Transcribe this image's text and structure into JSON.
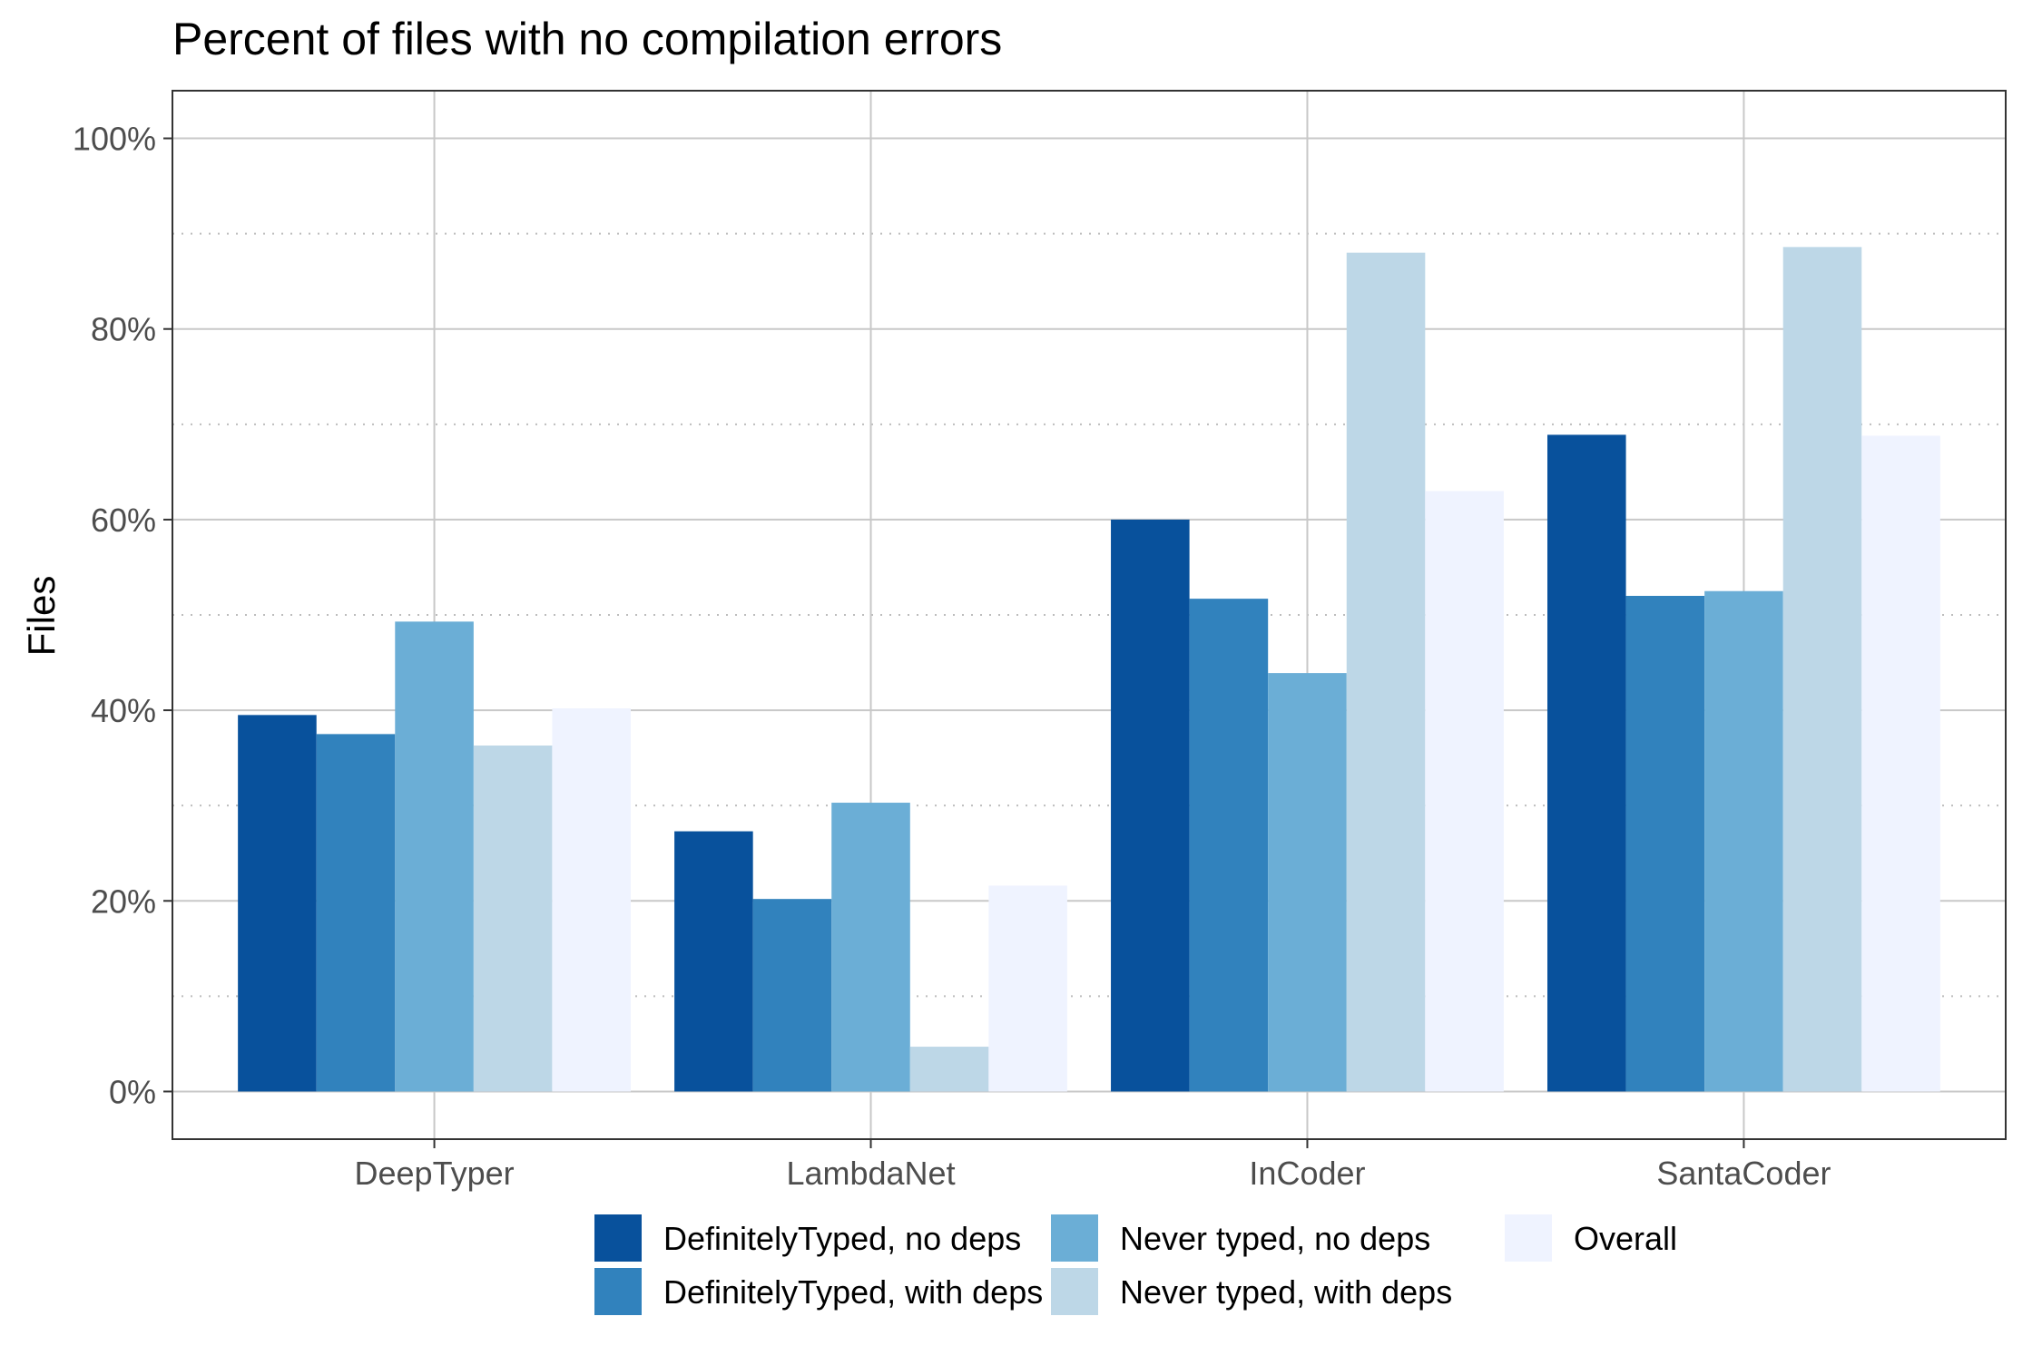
{
  "chart_data": {
    "type": "bar",
    "title": "Percent of files with no compilation errors",
    "xlabel": "",
    "ylabel": "Files",
    "categories": [
      "DeepTyper",
      "LambdaNet",
      "InCoder",
      "SantaCoder"
    ],
    "ylim": [
      -5,
      105
    ],
    "yticks": [
      0,
      20,
      40,
      60,
      80,
      100
    ],
    "ytick_labels": [
      "0%",
      "20%",
      "40%",
      "60%",
      "80%",
      "100%"
    ],
    "minor_gridlines": [
      10,
      30,
      50,
      70,
      90
    ],
    "grid": true,
    "legend_position": "bottom",
    "series": [
      {
        "name": "DefinitelyTyped, no deps",
        "color": "#08519c",
        "values": [
          39.5,
          27.3,
          60.0,
          68.9
        ]
      },
      {
        "name": "DefinitelyTyped, with deps",
        "color": "#3182bd",
        "values": [
          37.5,
          20.2,
          51.7,
          52.0
        ]
      },
      {
        "name": "Never typed, no deps",
        "color": "#6baed6",
        "values": [
          49.3,
          30.3,
          43.9,
          52.5
        ]
      },
      {
        "name": "Never typed, with deps",
        "color": "#bdd7e7",
        "values": [
          36.3,
          4.7,
          88.0,
          88.6
        ]
      },
      {
        "name": "Overall",
        "color": "#eff3ff",
        "values": [
          40.2,
          21.6,
          63.0,
          68.8
        ]
      }
    ]
  }
}
